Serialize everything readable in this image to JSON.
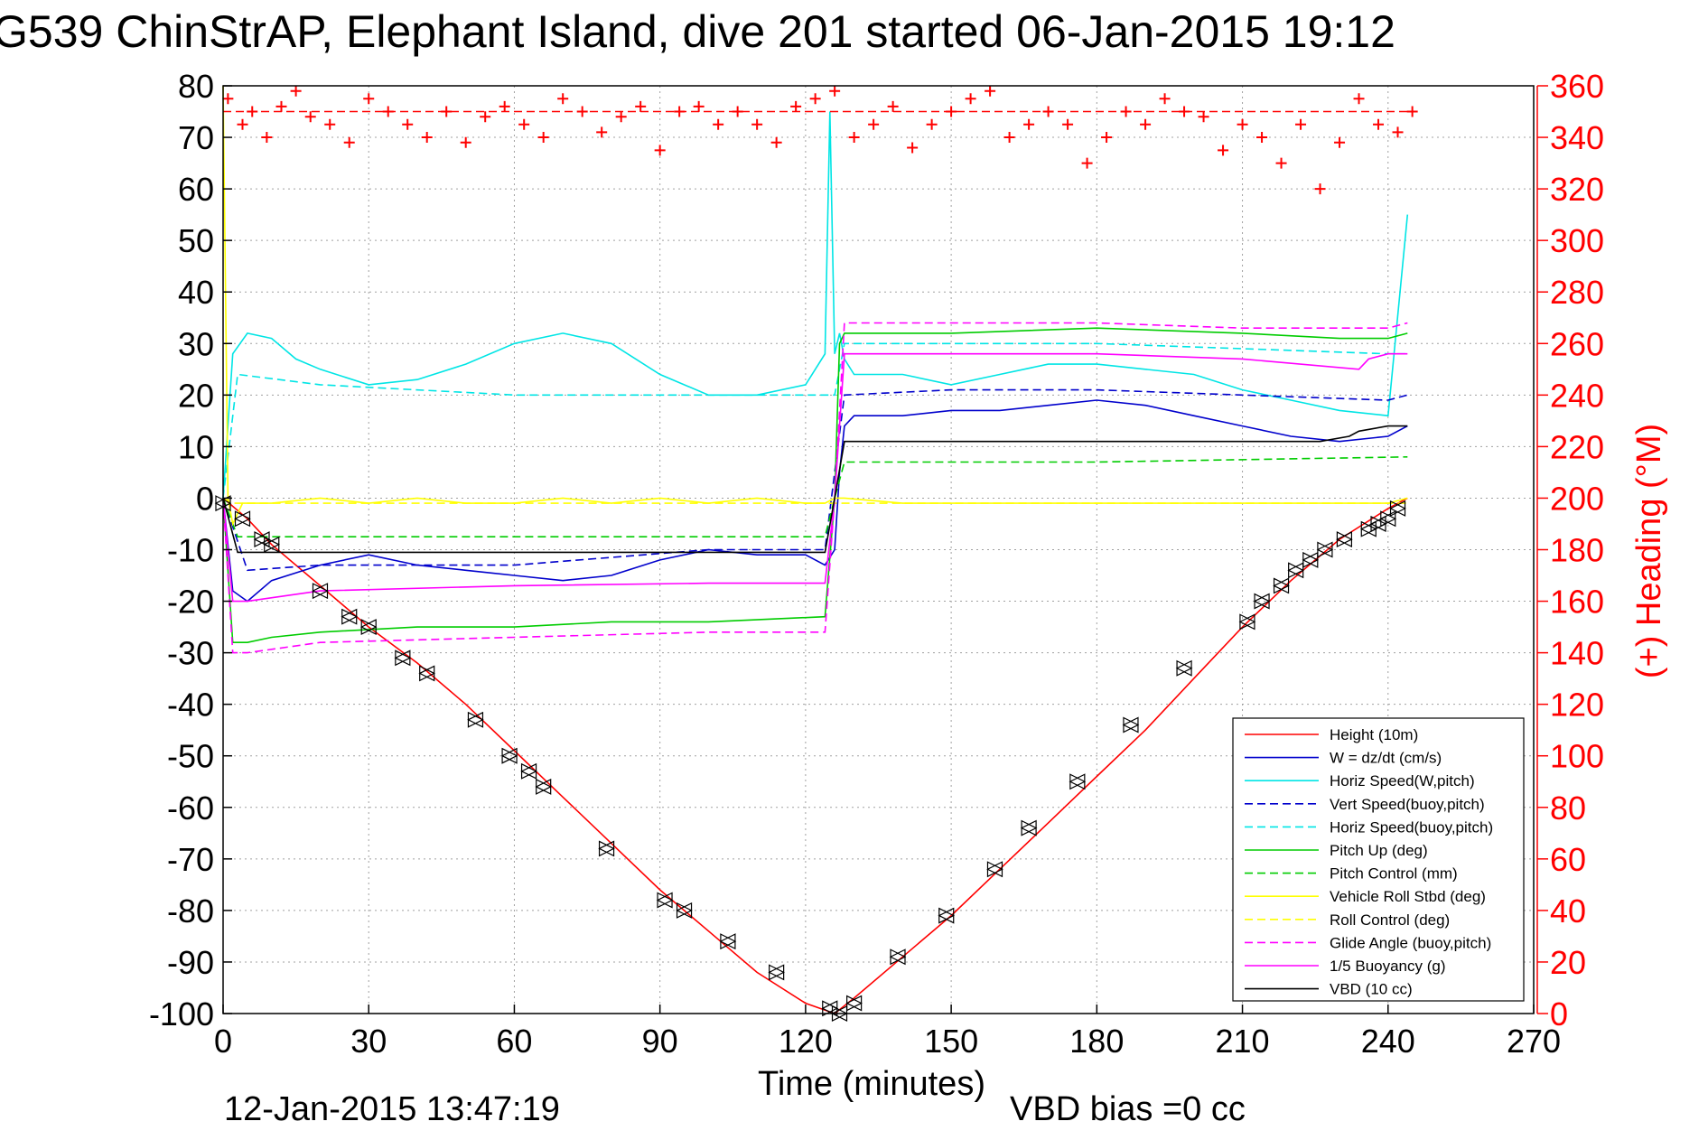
{
  "chart_data": {
    "type": "line",
    "title": "G539 ChinStrAP, Elephant Island, dive 201 started 06-Jan-2015 19:12",
    "xlabel": "Time (minutes)",
    "ylabel": "",
    "ylabel_right": "(+) Heading (°M)",
    "xlim": [
      0,
      270
    ],
    "ylim": [
      -100,
      80
    ],
    "ylim_right": [
      0,
      360
    ],
    "x_ticks": [
      "0",
      "30",
      "60",
      "90",
      "120",
      "150",
      "180",
      "210",
      "240",
      "270"
    ],
    "y_ticks": [
      "80",
      "70",
      "60",
      "50",
      "40",
      "30",
      "20",
      "10",
      "0",
      "-10",
      "-20",
      "-30",
      "-40",
      "-50",
      "-60",
      "-70",
      "-80",
      "-90",
      "-100"
    ],
    "y_right_ticks": [
      "360",
      "340",
      "320",
      "300",
      "280",
      "260",
      "240",
      "220",
      "200",
      "180",
      "160",
      "140",
      "120",
      "100",
      "80",
      "60",
      "40",
      "20",
      "0"
    ],
    "grid": true,
    "legend_position": "bottom-right",
    "footer_left": "12-Jan-2015 13:47:19",
    "footer_right": "VBD bias =0 cc",
    "legend": [
      {
        "label": "Height (10m)",
        "color": "#ff0000",
        "dash": false
      },
      {
        "label": "W = dz/dt (cm/s)",
        "color": "#0000cc",
        "dash": false
      },
      {
        "label": "Horiz Speed(W,pitch)",
        "color": "#00e5e5",
        "dash": false
      },
      {
        "label": "Vert Speed(buoy,pitch)",
        "color": "#0000cc",
        "dash": true
      },
      {
        "label": "Horiz Speed(buoy,pitch)",
        "color": "#00e5e5",
        "dash": true
      },
      {
        "label": "Pitch Up (deg)",
        "color": "#00cc00",
        "dash": false
      },
      {
        "label": "Pitch Control (mm)",
        "color": "#00cc00",
        "dash": true
      },
      {
        "label": "Vehicle Roll Stbd (deg)",
        "color": "#ffff00",
        "dash": false
      },
      {
        "label": "Roll Control (deg)",
        "color": "#ffff00",
        "dash": true
      },
      {
        "label": "Glide Angle (buoy,pitch)",
        "color": "#ff00ff",
        "dash": true
      },
      {
        "label": "1/5 Buoyancy (g)",
        "color": "#ff00ff",
        "dash": false
      },
      {
        "label": "VBD (10 cc)",
        "color": "#000000",
        "dash": false
      }
    ],
    "series": [
      {
        "name": "Height (10m)",
        "color": "#ff0000",
        "dash": false,
        "x": [
          0,
          5,
          10,
          20,
          30,
          40,
          50,
          60,
          70,
          80,
          90,
          100,
          110,
          120,
          126,
          130,
          140,
          150,
          160,
          170,
          180,
          190,
          200,
          210,
          220,
          230,
          240,
          244
        ],
        "y": [
          0,
          -4,
          -9,
          -17,
          -25,
          -32,
          -40,
          -49,
          -58,
          -67,
          -76,
          -84,
          -92,
          -98,
          -100,
          -97,
          -89,
          -81,
          -72,
          -63,
          -54,
          -45,
          -35,
          -25,
          -16,
          -8,
          -2,
          0
        ]
      },
      {
        "name": "Depth markers",
        "color": "#000000",
        "markers": "triangle",
        "x": [
          0,
          4,
          8,
          10,
          20,
          26,
          30,
          37,
          42,
          52,
          59,
          63,
          66,
          79,
          91,
          95,
          104,
          114,
          125,
          127,
          130,
          139,
          149,
          159,
          166,
          176,
          187,
          198,
          211,
          214,
          218,
          221,
          224,
          227,
          231,
          236,
          238,
          240,
          242
        ],
        "y": [
          -1,
          -4,
          -8,
          -9,
          -18,
          -23,
          -25,
          -31,
          -34,
          -43,
          -50,
          -53,
          -56,
          -68,
          -78,
          -80,
          -86,
          -92,
          -99,
          -100,
          -98,
          -89,
          -81,
          -72,
          -64,
          -55,
          -44,
          -33,
          -24,
          -20,
          -17,
          -14,
          -12,
          -10,
          -8,
          -6,
          -5,
          -4,
          -2
        ]
      },
      {
        "name": "W = dz/dt (cm/s)",
        "color": "#0000cc",
        "dash": false,
        "x": [
          0,
          2,
          5,
          10,
          20,
          30,
          40,
          50,
          60,
          70,
          80,
          90,
          100,
          110,
          120,
          124,
          126,
          127,
          128,
          130,
          140,
          150,
          160,
          170,
          180,
          190,
          200,
          210,
          220,
          230,
          240,
          244
        ],
        "y": [
          0,
          -18,
          -20,
          -16,
          -13,
          -11,
          -13,
          -14,
          -15,
          -16,
          -15,
          -12,
          -10,
          -11,
          -11,
          -13,
          -10,
          5,
          14,
          16,
          16,
          17,
          17,
          18,
          19,
          18,
          16,
          14,
          12,
          11,
          12,
          14
        ]
      },
      {
        "name": "Horiz Speed(W,pitch)",
        "color": "#00e5e5",
        "dash": false,
        "x": [
          0,
          2,
          5,
          10,
          15,
          20,
          30,
          40,
          50,
          60,
          70,
          80,
          90,
          100,
          110,
          120,
          124,
          125,
          126,
          127,
          128,
          130,
          140,
          150,
          160,
          170,
          180,
          190,
          200,
          210,
          220,
          230,
          240,
          244
        ],
        "y": [
          0,
          28,
          32,
          31,
          27,
          25,
          22,
          23,
          26,
          30,
          32,
          30,
          24,
          20,
          20,
          22,
          28,
          75,
          28,
          32,
          27,
          24,
          24,
          22,
          24,
          26,
          26,
          25,
          24,
          21,
          19,
          17,
          16,
          55
        ]
      },
      {
        "name": "Vert Speed(buoy,pitch)",
        "color": "#0000cc",
        "dash": true,
        "x": [
          0,
          5,
          20,
          60,
          100,
          124,
          126,
          128,
          150,
          180,
          210,
          240,
          244
        ],
        "y": [
          0,
          -14,
          -13,
          -13,
          -10,
          -10,
          5,
          20,
          21,
          21,
          20,
          19,
          20
        ]
      },
      {
        "name": "Horiz Speed(buoy,pitch)",
        "color": "#00e5e5",
        "dash": true,
        "x": [
          0,
          3,
          20,
          60,
          100,
          124,
          126,
          128,
          150,
          180,
          210,
          240,
          244
        ],
        "y": [
          0,
          24,
          22,
          20,
          20,
          20,
          20,
          30,
          30,
          30,
          29,
          28,
          28
        ]
      },
      {
        "name": "Pitch Up (deg)",
        "color": "#00cc00",
        "dash": false,
        "x": [
          0,
          2,
          5,
          10,
          20,
          40,
          60,
          80,
          100,
          124,
          126,
          127,
          128,
          130,
          150,
          180,
          210,
          230,
          240,
          244
        ],
        "y": [
          0,
          -28,
          -28,
          -27,
          -26,
          -25,
          -25,
          -24,
          -24,
          -23,
          0,
          30,
          32,
          32,
          32,
          33,
          32,
          31,
          31,
          32
        ]
      },
      {
        "name": "Pitch Control (mm)",
        "color": "#00cc00",
        "dash": true,
        "x": [
          0,
          3,
          124,
          126,
          128,
          180,
          244
        ],
        "y": [
          0,
          -7.5,
          -7.5,
          0,
          7,
          7,
          8
        ]
      },
      {
        "name": "Vehicle Roll Stbd (deg)",
        "color": "#ffff00",
        "dash": false,
        "x": [
          0,
          1,
          2,
          4,
          10,
          20,
          30,
          40,
          50,
          60,
          70,
          80,
          90,
          100,
          110,
          120,
          124,
          126,
          128,
          140,
          160,
          180,
          200,
          220,
          240,
          244
        ],
        "y": [
          80,
          0,
          -5,
          -1,
          -1,
          0,
          -1,
          0,
          -1,
          -1,
          0,
          -1,
          0,
          -1,
          0,
          -1,
          -1,
          0,
          0,
          -1,
          -1,
          -1,
          -1,
          -1,
          -1,
          0
        ]
      },
      {
        "name": "Roll Control (deg)",
        "color": "#ffff00",
        "dash": true,
        "x": [
          0,
          2,
          124,
          126,
          244
        ],
        "y": [
          0,
          -1,
          -1,
          -1,
          -1
        ]
      },
      {
        "name": "Glide Angle (buoy,pitch)",
        "color": "#ff00ff",
        "dash": true,
        "x": [
          0,
          2,
          5,
          20,
          60,
          100,
          124,
          126,
          128,
          150,
          180,
          210,
          240,
          244
        ],
        "y": [
          0,
          -30,
          -30,
          -28,
          -27,
          -26,
          -26,
          0,
          34,
          34,
          34,
          33,
          33,
          34
        ]
      },
      {
        "name": "1/5 Buoyancy (g)",
        "color": "#ff00ff",
        "dash": false,
        "x": [
          0,
          2,
          5,
          20,
          60,
          100,
          124,
          126,
          128,
          180,
          210,
          234,
          236,
          240,
          244
        ],
        "y": [
          0,
          -20,
          -20,
          -18,
          -17,
          -16.5,
          -16.5,
          0,
          28,
          28,
          27,
          25,
          27,
          28,
          28
        ]
      },
      {
        "name": "VBD (10 cc)",
        "color": "#000000",
        "dash": false,
        "x": [
          0,
          3,
          124,
          126,
          128,
          226,
          232,
          234,
          240,
          244
        ],
        "y": [
          0,
          -10.5,
          -10.5,
          0,
          11,
          11,
          12,
          13,
          14,
          14
        ]
      },
      {
        "name": "(+) Heading (°M)",
        "color": "#ff0000",
        "markers": "plus",
        "axis": "right",
        "x": [
          1,
          4,
          6,
          9,
          12,
          15,
          18,
          22,
          26,
          30,
          34,
          38,
          42,
          46,
          50,
          54,
          58,
          62,
          66,
          70,
          74,
          78,
          82,
          86,
          90,
          94,
          98,
          102,
          106,
          110,
          114,
          118,
          122,
          126,
          130,
          134,
          138,
          142,
          146,
          150,
          154,
          158,
          162,
          166,
          170,
          174,
          178,
          182,
          186,
          190,
          194,
          198,
          202,
          206,
          210,
          214,
          218,
          222,
          226,
          230,
          234,
          238,
          242,
          245
        ],
        "y": [
          355,
          345,
          350,
          340,
          352,
          358,
          348,
          345,
          338,
          355,
          350,
          345,
          340,
          350,
          338,
          348,
          352,
          345,
          340,
          355,
          350,
          342,
          348,
          352,
          335,
          350,
          352,
          345,
          350,
          345,
          338,
          352,
          355,
          358,
          340,
          345,
          352,
          336,
          345,
          350,
          355,
          358,
          340,
          345,
          350,
          345,
          330,
          340,
          350,
          345,
          355,
          350,
          348,
          335,
          345,
          340,
          330,
          345,
          320,
          338,
          355,
          345,
          342,
          350
        ]
      },
      {
        "name": "Heading reference",
        "color": "#ff0000",
        "dash": true,
        "axis": "right",
        "x": [
          0,
          245
        ],
        "y": [
          350,
          350
        ]
      }
    ]
  }
}
